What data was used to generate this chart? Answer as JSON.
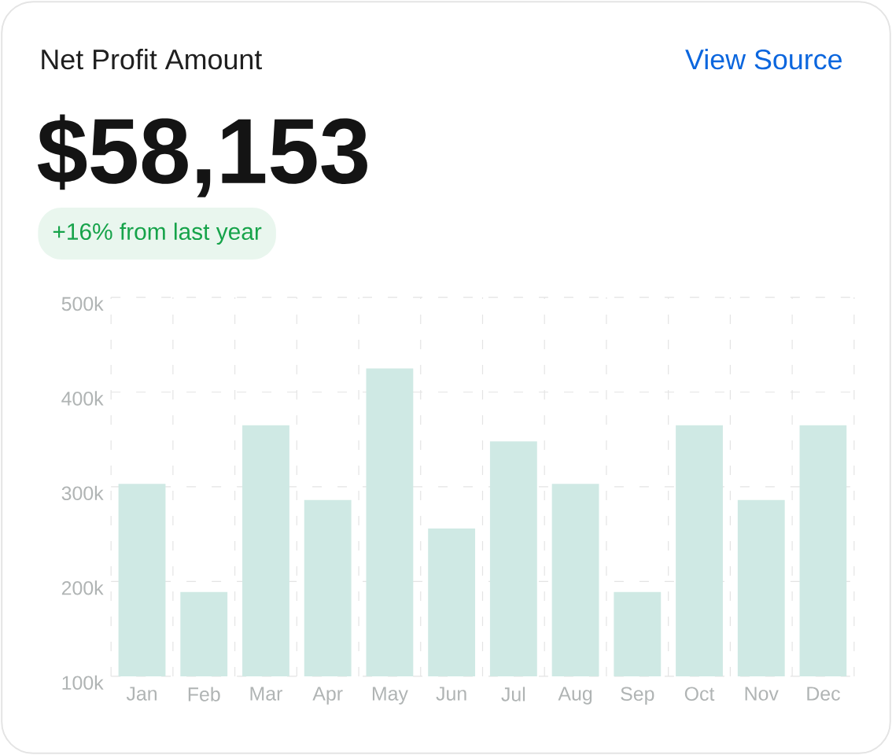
{
  "chart_data": {
    "type": "bar",
    "title": "Net Profit Amount",
    "subtitle": "$58,153",
    "annotations": [
      "+16% from last year",
      "View Source"
    ],
    "categories": [
      "Jan",
      "Feb",
      "Mar",
      "Apr",
      "May",
      "Jun",
      "Jul",
      "Aug",
      "Sep",
      "Oct",
      "Nov",
      "Dec"
    ],
    "values": [
      303000,
      189000,
      365000,
      286000,
      425000,
      256000,
      348000,
      303000,
      189000,
      365000,
      286000,
      365000
    ],
    "color": "#cfe9e4",
    "ylim": [
      100000,
      500000
    ],
    "yticks": [
      {
        "value": 100000,
        "label": "100k"
      },
      {
        "value": 200000,
        "label": "200k"
      },
      {
        "value": 300000,
        "label": "300k"
      },
      {
        "value": 400000,
        "label": "400k"
      },
      {
        "value": 500000,
        "label": "500k"
      }
    ],
    "grid": true
  }
}
